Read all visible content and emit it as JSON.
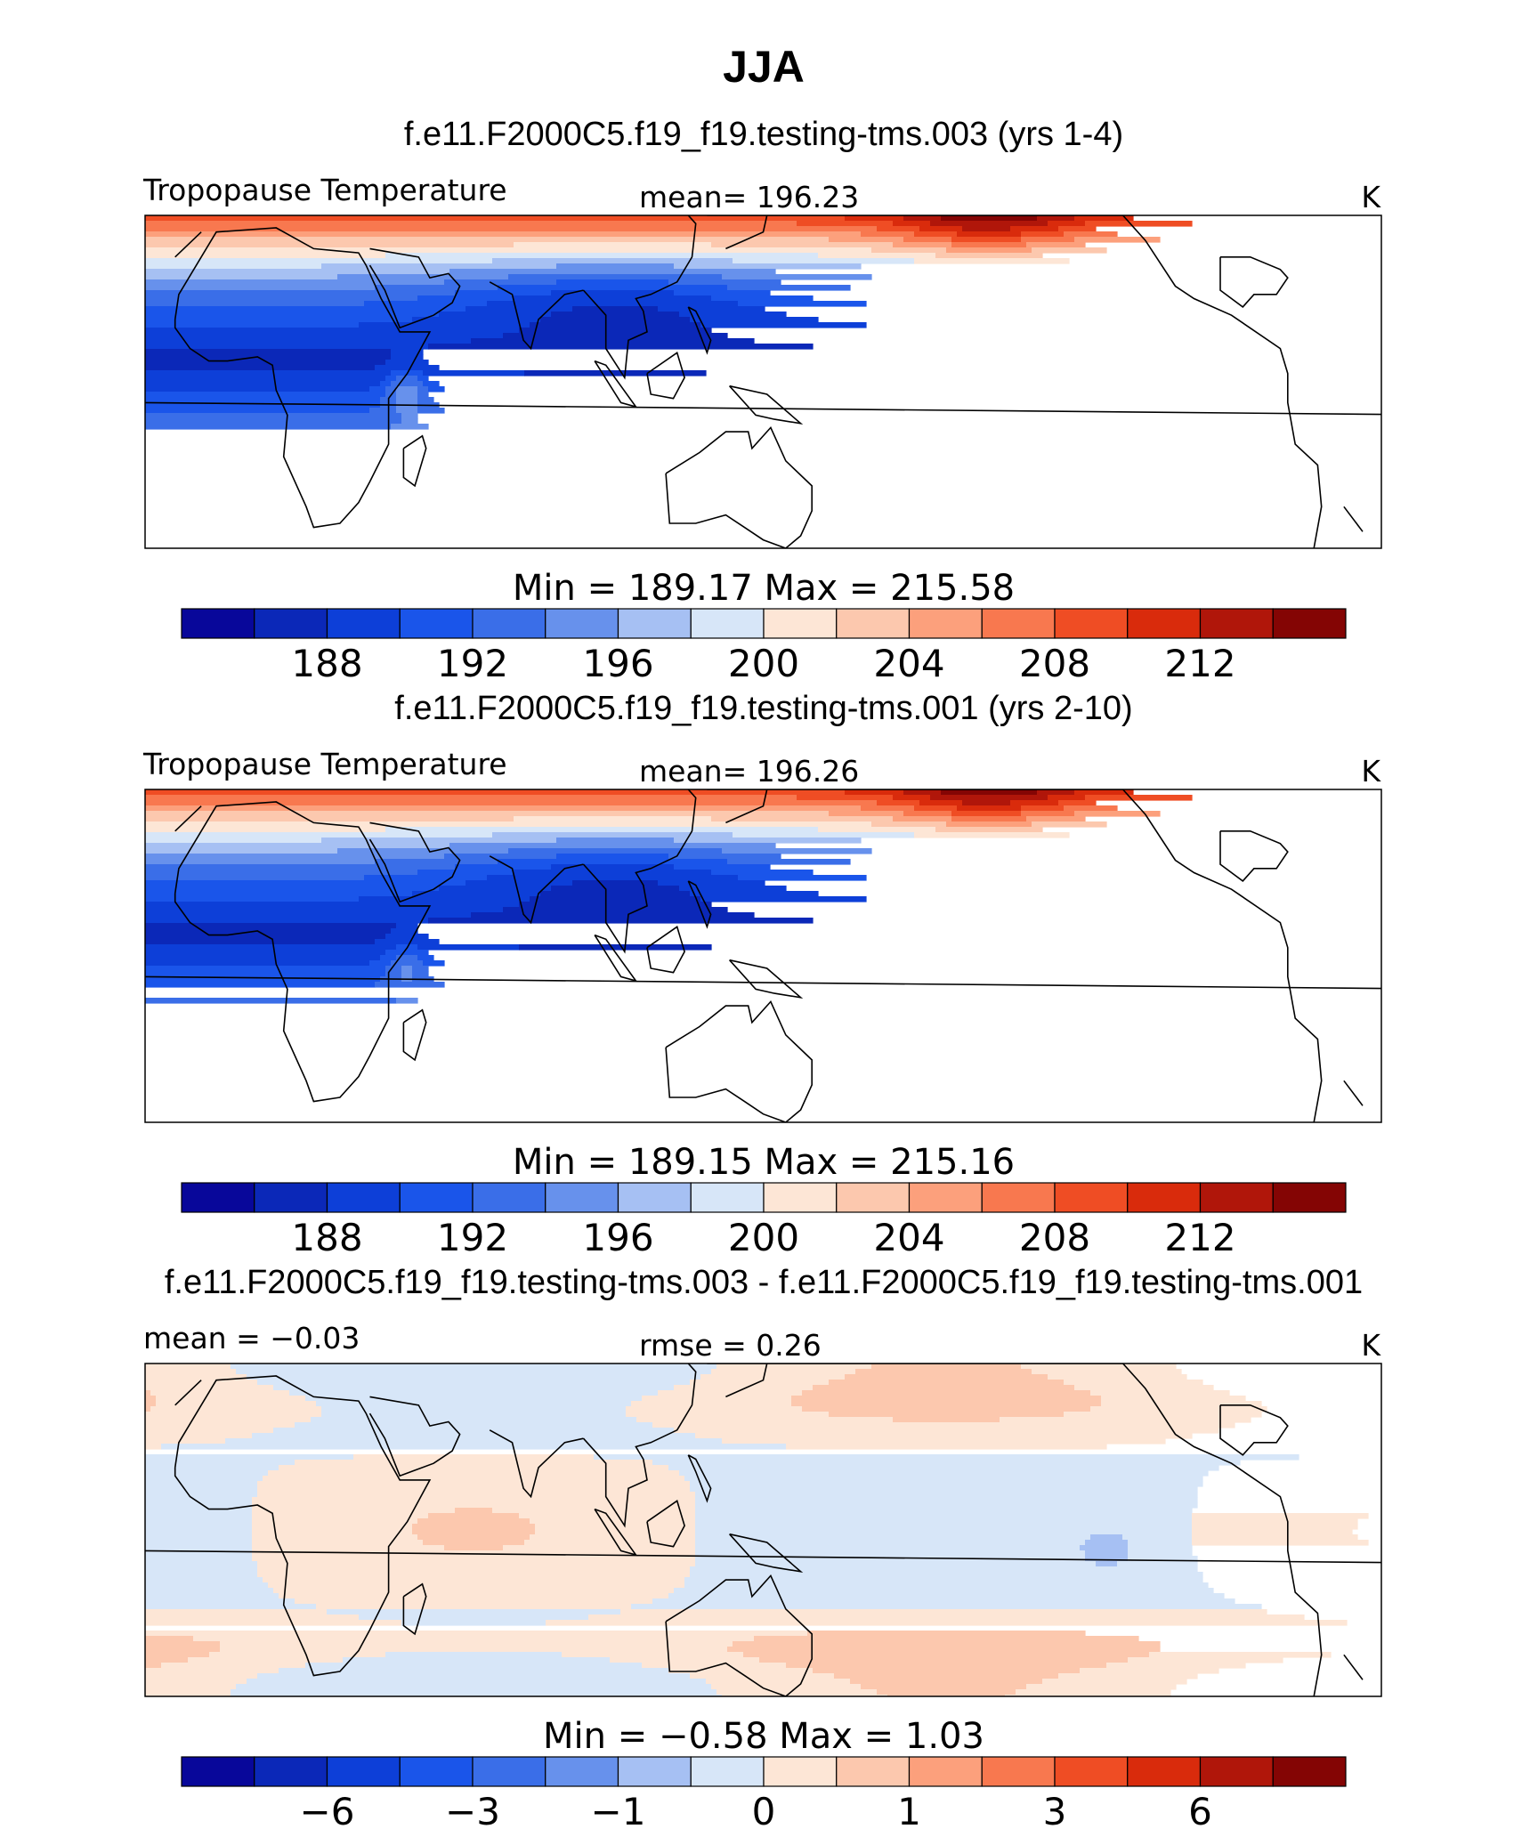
{
  "figure": {
    "title": "JJA"
  },
  "chart_data": [
    {
      "type": "heatmap",
      "title": "f.e11.F2000C5.f19_f19.testing-tms.003 (yrs 1-4)",
      "left_label": "Tropopause  Temperature",
      "center_label": "mean=  196.23",
      "units": "K",
      "min_max": "Min  =  189.17  Max  =  215.58",
      "colorbar_ticks": [
        "188",
        "192",
        "196",
        "200",
        "204",
        "208",
        "212"
      ],
      "colorbar_levels": 16,
      "field": "bands",
      "dip_low": 2.5,
      "blob": 5.5,
      "south_max": 15
    },
    {
      "type": "heatmap",
      "title": "f.e11.F2000C5.f19_f19.testing-tms.001 (yrs 2-10)",
      "left_label": "Tropopause  Temperature",
      "center_label": "mean=  196.26",
      "units": "K",
      "min_max": "Min  =  189.15  Max  =  215.16",
      "colorbar_ticks": [
        "188",
        "192",
        "196",
        "200",
        "204",
        "208",
        "212"
      ],
      "colorbar_levels": 16,
      "field": "bands",
      "dip_low": 2.5,
      "blob": 5.0,
      "south_max": 14.6
    },
    {
      "type": "heatmap",
      "title": "f.e11.F2000C5.f19_f19.testing-tms.003 - f.e11.F2000C5.f19_f19.testing-tms.001",
      "left_label": "mean =   −0.03",
      "center_label": "rmse  =     0.26",
      "units": "K",
      "min_max": "Min  =    −0.58  Max  =     1.03",
      "colorbar_ticks": [
        "−6",
        "−3",
        "−1",
        "0",
        "1",
        "3",
        "6"
      ],
      "colorbar_levels": 16,
      "field": "difference"
    }
  ],
  "colors": {
    "palette": [
      "#08079a",
      "#0b28b8",
      "#0d3fd8",
      "#1a55ea",
      "#3a6ee8",
      "#6791ec",
      "#a6c0f3",
      "#d7e6f8",
      "#fde6d6",
      "#fcc8ae",
      "#fca07c",
      "#f8784f",
      "#ef4d24",
      "#d92b0c",
      "#b0160a",
      "#840504"
    ],
    "coast": "#000000"
  }
}
